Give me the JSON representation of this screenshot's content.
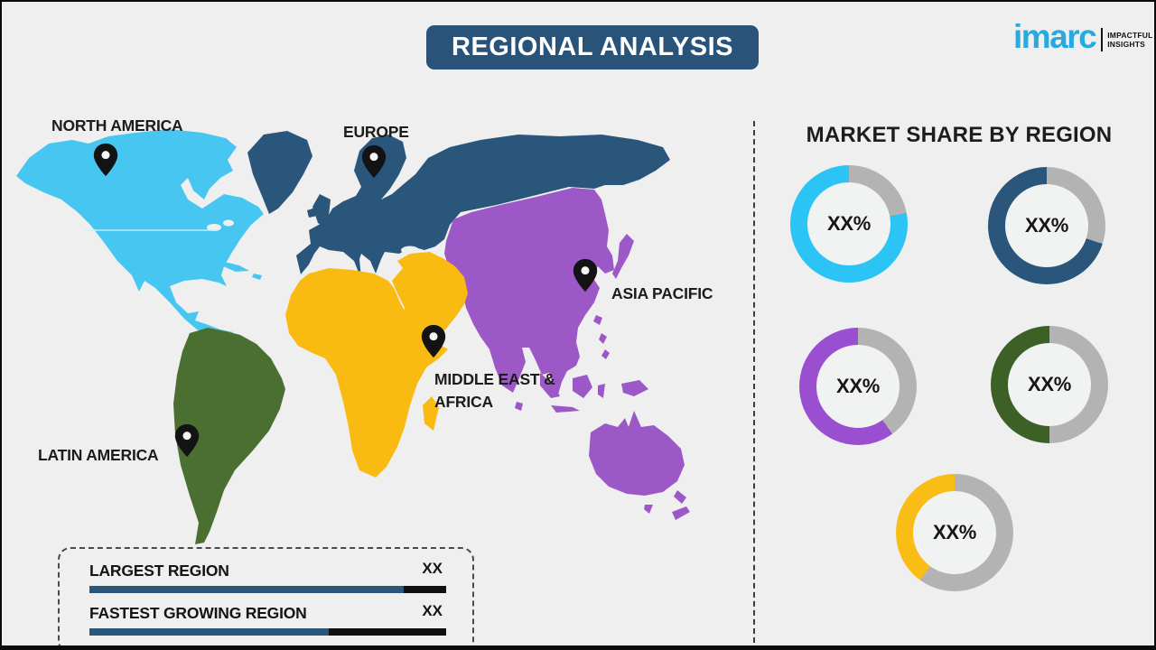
{
  "header": {
    "title": "REGIONAL ANALYSIS",
    "banner_color": "#2a5379"
  },
  "logo": {
    "brand": "imarc",
    "brand_color": "#29a9e0",
    "tagline_line1": "IMPACTFUL",
    "tagline_line2": "INSIGHTS"
  },
  "map": {
    "regions": [
      {
        "name": "North America",
        "label": "NORTH AMERICA",
        "color": "#47c6f2"
      },
      {
        "name": "Europe",
        "label": "EUROPE",
        "color": "#2a567c"
      },
      {
        "name": "Asia Pacific",
        "label": "ASIA PACIFIC",
        "color": "#9d58c8"
      },
      {
        "name": "Middle East & Africa",
        "label_line1": "MIDDLE EAST &",
        "label_line2": "AFRICA",
        "color": "#f9ba12"
      },
      {
        "name": "Latin America",
        "label": "LATIN AMERICA",
        "color": "#4b6f31"
      }
    ],
    "pin_color": "#131313"
  },
  "market_share": {
    "title": "MARKET SHARE BY REGION",
    "gray_color": "#b3b3b3",
    "donuts": [
      {
        "region": "North America",
        "value_label": "XX%",
        "color": "#2bc4f5",
        "colored_pct": 78
      },
      {
        "region": "Europe",
        "value_label": "XX%",
        "color": "#2a567c",
        "colored_pct": 70
      },
      {
        "region": "Asia Pacific",
        "value_label": "XX%",
        "color": "#9a4fd0",
        "colored_pct": 60
      },
      {
        "region": "Latin America",
        "value_label": "XX%",
        "color": "#3d6026",
        "colored_pct": 50
      },
      {
        "region": "Middle East & Africa",
        "value_label": "XX%",
        "color": "#f9bd16",
        "colored_pct": 40
      }
    ]
  },
  "summary": {
    "rows": [
      {
        "label": "LARGEST REGION",
        "value": "XX",
        "fill_pct": 88,
        "bar_color": "#2a567c",
        "track_color": "#111111"
      },
      {
        "label": "FASTEST GROWING REGION",
        "value": "XX",
        "fill_pct": 67,
        "bar_color": "#2a567c",
        "track_color": "#111111"
      }
    ]
  },
  "chart_data": {
    "type": "pie",
    "title": "MARKET SHARE BY REGION",
    "charts": [
      {
        "label": "North America",
        "value_label": "XX%",
        "colored_fraction_est": 0.78,
        "color": "#2bc4f5"
      },
      {
        "label": "Europe",
        "value_label": "XX%",
        "colored_fraction_est": 0.7,
        "color": "#2a567c"
      },
      {
        "label": "Asia Pacific",
        "value_label": "XX%",
        "colored_fraction_est": 0.6,
        "color": "#9a4fd0"
      },
      {
        "label": "Latin America",
        "value_label": "XX%",
        "colored_fraction_est": 0.5,
        "color": "#3d6026"
      },
      {
        "label": "Middle East & Africa",
        "value_label": "XX%",
        "colored_fraction_est": 0.4,
        "color": "#f9bd16"
      }
    ],
    "bars": [
      {
        "label": "LARGEST REGION",
        "value_label": "XX",
        "fill_fraction_est": 0.88
      },
      {
        "label": "FASTEST GROWING REGION",
        "value_label": "XX",
        "fill_fraction_est": 0.67
      }
    ],
    "legend_position": "none",
    "notes": "Donut remainder segments rendered gray #b3b3b3; values are placeholders."
  }
}
